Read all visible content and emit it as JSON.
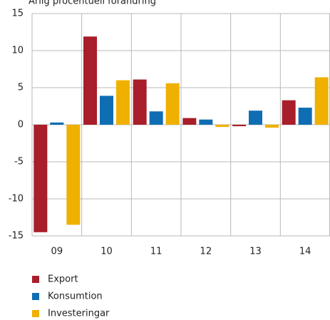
{
  "chart_data": {
    "type": "bar",
    "title": "Årlig procentuell förändring",
    "categories": [
      "09",
      "10",
      "11",
      "12",
      "13",
      "14"
    ],
    "series": [
      {
        "name": "Export",
        "color": "#a81e2a",
        "values": [
          -14.5,
          11.9,
          6.1,
          0.9,
          -0.2,
          3.3
        ]
      },
      {
        "name": "Konsumtion",
        "color": "#0f6db3",
        "values": [
          0.3,
          3.9,
          1.8,
          0.7,
          1.9,
          2.3
        ]
      },
      {
        "name": "Investeringar",
        "color": "#f0b000",
        "values": [
          -13.5,
          6.0,
          5.6,
          -0.3,
          -0.4,
          6.4
        ]
      }
    ],
    "ylim": [
      -15,
      15
    ],
    "yticks": [
      -15,
      -10,
      -5,
      0,
      5,
      10,
      15
    ],
    "grid": true,
    "legend": "bottom-left"
  }
}
